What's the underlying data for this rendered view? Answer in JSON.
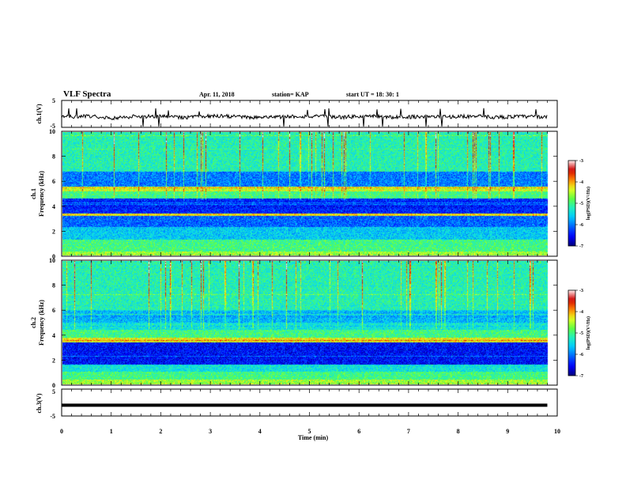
{
  "header": {
    "title": "VLF Spectra",
    "date": "Apr. 11, 2018",
    "station": "station= KAP",
    "start_time": "start  UT =   18: 30: 1"
  },
  "colors": {
    "spectrogram_ramp": [
      "#00007a",
      "#0000ff",
      "#0060ff",
      "#00c8ff",
      "#20f0c0",
      "#60ff40",
      "#e8ff20",
      "#ff8000",
      "#d00000",
      "#fff0f0"
    ],
    "waveform": "#000000"
  },
  "chart_data": [
    {
      "type": "line",
      "panel": "ch1-waveform",
      "ylabel": "ch.1(V)",
      "ylim": [
        -5,
        5
      ],
      "yticks": [
        "5",
        "-5"
      ],
      "xlim": [
        0,
        10
      ],
      "note_values": "noisy waveform fluctuating around -1 V with frequent spikes",
      "series": [
        {
          "values": [
            -1.2,
            -0.8,
            -1.5,
            -0.9,
            -1.0,
            -1.3,
            -0.7,
            -1.1,
            -1.4,
            -0.9,
            -1.0,
            -1.2,
            -0.8,
            -1.3,
            -1.0,
            -1.1,
            -0.9,
            -1.2,
            -1.0,
            -1.1
          ]
        }
      ]
    },
    {
      "type": "heatmap",
      "panel": "ch1-spectrogram",
      "ylabel": "ch.1",
      "ylabel2": "Frequency (kHz)",
      "ylim": [
        0,
        10
      ],
      "yticks": [
        "0",
        "2",
        "4",
        "6",
        "8",
        "10"
      ],
      "xlim": [
        0,
        10
      ],
      "colorbar": {
        "label": "log(PSD)(V²/Hz)",
        "range": [
          -7,
          -3
        ],
        "ticks": [
          "-3",
          "-4",
          "-5",
          "-6",
          "-7"
        ]
      },
      "bands": [
        {
          "from": 0,
          "to": 0.3,
          "level": -4.6
        },
        {
          "from": 0.3,
          "to": 1.3,
          "level": -5.0
        },
        {
          "from": 1.3,
          "to": 2.3,
          "level": -5.6
        },
        {
          "from": 2.3,
          "to": 3.2,
          "level": -6.1
        },
        {
          "from": 3.2,
          "to": 3.4,
          "level": -4.2
        },
        {
          "from": 3.4,
          "to": 4.6,
          "level": -6.4
        },
        {
          "from": 4.6,
          "to": 5.2,
          "level": -5.0
        },
        {
          "from": 5.2,
          "to": 5.6,
          "level": -4.4
        },
        {
          "from": 5.6,
          "to": 6.8,
          "level": -6.0
        },
        {
          "from": 6.8,
          "to": 10.0,
          "level": -5.2
        }
      ]
    },
    {
      "type": "heatmap",
      "panel": "ch2-spectrogram",
      "ylabel": "ch.2",
      "ylabel2": "Frequency (kHz)",
      "ylim": [
        0,
        10
      ],
      "yticks": [
        "0",
        "2",
        "4",
        "6",
        "8",
        "10"
      ],
      "xlim": [
        0,
        10
      ],
      "colorbar": {
        "label": "log(PSD)(V²/Hz)",
        "range": [
          -7,
          -3
        ],
        "ticks": [
          "-3",
          "-4",
          "-5",
          "-6",
          "-7"
        ]
      },
      "bands": [
        {
          "from": 0,
          "to": 0.3,
          "level": -4.6
        },
        {
          "from": 0.3,
          "to": 1.0,
          "level": -5.0
        },
        {
          "from": 1.0,
          "to": 1.6,
          "level": -5.4
        },
        {
          "from": 1.6,
          "to": 3.4,
          "level": -6.5
        },
        {
          "from": 3.4,
          "to": 3.8,
          "level": -4.3
        },
        {
          "from": 3.8,
          "to": 4.4,
          "level": -5.0
        },
        {
          "from": 4.4,
          "to": 5.0,
          "level": -5.4
        },
        {
          "from": 5.0,
          "to": 6.0,
          "level": -5.7
        },
        {
          "from": 6.0,
          "to": 10.0,
          "level": -5.2
        }
      ]
    },
    {
      "type": "line",
      "panel": "ch3-waveform",
      "ylabel": "ch.3(V)",
      "ylim": [
        -5,
        5
      ],
      "yticks": [
        "5",
        "0",
        "-5"
      ],
      "xlim": [
        0,
        10
      ],
      "series": [
        {
          "values": [
            -1.0,
            -1.0
          ]
        }
      ]
    }
  ],
  "xaxis": {
    "label": "Time  (min)",
    "ticks": [
      "0",
      "1",
      "2",
      "3",
      "4",
      "5",
      "6",
      "7",
      "8",
      "9",
      "10"
    ],
    "data_end": 9.8
  }
}
